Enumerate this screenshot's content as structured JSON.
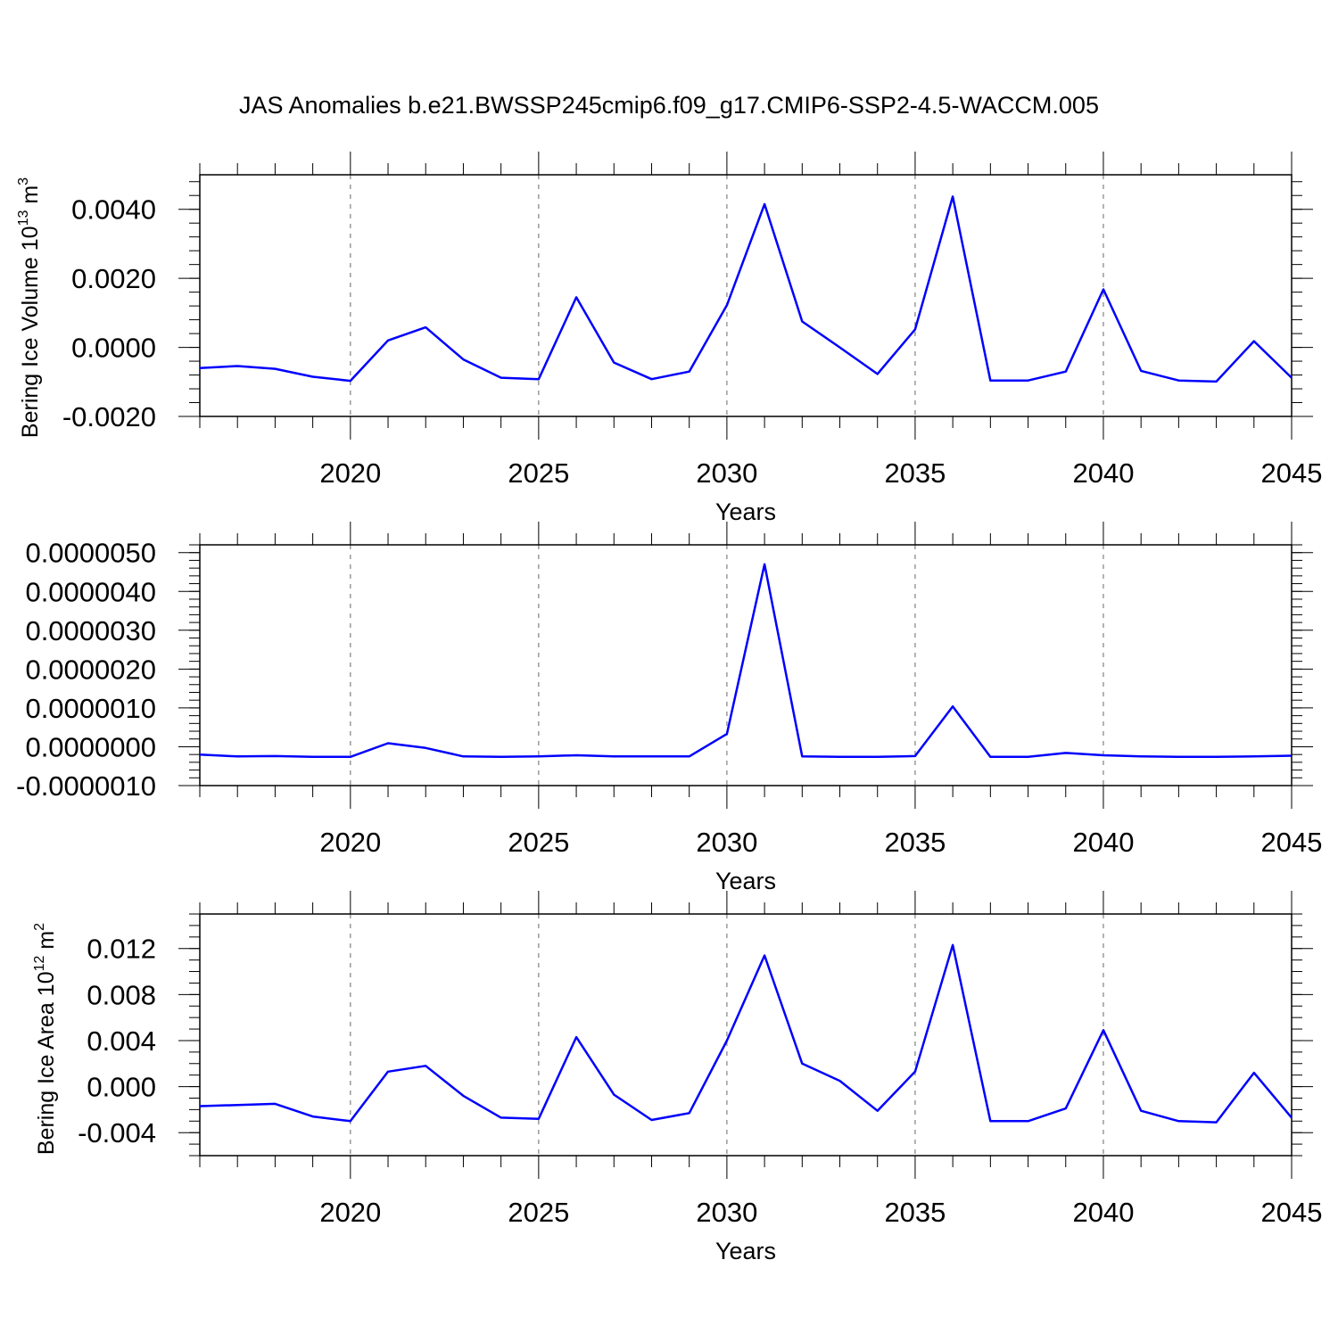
{
  "title": "JAS Anomalies b.e21.BWSSP245cmip6.f09_g17.CMIP6-SSP2-4.5-WACCM.005",
  "colors": {
    "series": "#0000ff",
    "axis": "#000000",
    "grid": "#808080"
  },
  "chart_data": [
    {
      "type": "line",
      "ylabel_main": "Bering Ice Volume 10",
      "ylabel_sup": "13",
      "ylabel_unit": " m",
      "ylabel_unit_sup": "3",
      "xlabel": "Years",
      "xlim": [
        2016,
        2045
      ],
      "ylim": [
        -0.002,
        0.005
      ],
      "x_ticks": [
        "2020",
        "2025",
        "2030",
        "2035",
        "2040",
        "2045"
      ],
      "y_ticks": [
        "0.0040",
        "0.0020",
        "0.0000",
        "-0.0020"
      ],
      "y_tick_values": [
        0.004,
        0.002,
        0.0,
        -0.002
      ],
      "y_minor_step": 0.0004,
      "grid": "vertical dashed at major x ticks",
      "x": [
        2016,
        2017,
        2018,
        2019,
        2020,
        2021,
        2022,
        2023,
        2024,
        2025,
        2026,
        2027,
        2028,
        2029,
        2030,
        2031,
        2032,
        2033,
        2034,
        2035,
        2036,
        2037,
        2038,
        2039,
        2040,
        2041,
        2042,
        2043,
        2044,
        2045
      ],
      "series": [
        {
          "values": [
            -0.0006,
            -0.00054,
            -0.00062,
            -0.00085,
            -0.00097,
            0.0002,
            0.00058,
            -0.00035,
            -0.00088,
            -0.00092,
            0.00145,
            -0.00044,
            -0.00092,
            -0.0007,
            0.00122,
            0.00415,
            0.00075,
            0.0,
            -0.00077,
            0.00052,
            0.00437,
            -0.00096,
            -0.00096,
            -0.0007,
            0.00168,
            -0.00068,
            -0.00096,
            -0.00099,
            0.00018,
            -0.00088
          ]
        }
      ]
    },
    {
      "type": "line",
      "ylabel_main": "",
      "xlabel": "Years",
      "xlim": [
        2016,
        2045
      ],
      "ylim": [
        -1e-06,
        5.2e-06
      ],
      "x_ticks": [
        "2020",
        "2025",
        "2030",
        "2035",
        "2040",
        "2045"
      ],
      "y_ticks": [
        "0.0000050",
        "0.0000040",
        "0.0000030",
        "0.0000020",
        "0.0000010",
        "0.0000000",
        "-0.0000010"
      ],
      "y_tick_values": [
        5e-06,
        4e-06,
        3e-06,
        2e-06,
        1e-06,
        0.0,
        -1e-06
      ],
      "y_minor_step": 2e-07,
      "grid": "vertical dashed at major x ticks",
      "x": [
        2016,
        2017,
        2018,
        2019,
        2020,
        2021,
        2022,
        2023,
        2024,
        2025,
        2026,
        2027,
        2028,
        2029,
        2030,
        2031,
        2032,
        2033,
        2034,
        2035,
        2036,
        2037,
        2038,
        2039,
        2040,
        2041,
        2042,
        2043,
        2044,
        2045
      ],
      "series": [
        {
          "values": [
            -2e-07,
            -2.5e-07,
            -2.4e-07,
            -2.6e-07,
            -2.6e-07,
            9e-08,
            -3e-08,
            -2.5e-07,
            -2.6e-07,
            -2.5e-07,
            -2.2e-07,
            -2.5e-07,
            -2.5e-07,
            -2.5e-07,
            3.3e-07,
            4.7e-06,
            -2.5e-07,
            -2.6e-07,
            -2.6e-07,
            -2.4e-07,
            1.04e-06,
            -2.6e-07,
            -2.6e-07,
            -1.6e-07,
            -2.2e-07,
            -2.5e-07,
            -2.6e-07,
            -2.6e-07,
            -2.5e-07,
            -2.3e-07
          ]
        }
      ]
    },
    {
      "type": "line",
      "ylabel_main": "Bering Ice Area 10",
      "ylabel_sup": "12",
      "ylabel_unit": " m",
      "ylabel_unit_sup": "2",
      "xlabel": "Years",
      "xlim": [
        2016,
        2045
      ],
      "ylim": [
        -0.006,
        0.015
      ],
      "x_ticks": [
        "2020",
        "2025",
        "2030",
        "2035",
        "2040",
        "2045"
      ],
      "y_ticks": [
        "0.012",
        "0.008",
        "0.004",
        "0.000",
        "-0.004"
      ],
      "y_tick_values": [
        0.012,
        0.008,
        0.004,
        0.0,
        -0.004
      ],
      "y_minor_step": 0.001,
      "grid": "vertical dashed at major x ticks",
      "x": [
        2016,
        2017,
        2018,
        2019,
        2020,
        2021,
        2022,
        2023,
        2024,
        2025,
        2026,
        2027,
        2028,
        2029,
        2030,
        2031,
        2032,
        2033,
        2034,
        2035,
        2036,
        2037,
        2038,
        2039,
        2040,
        2041,
        2042,
        2043,
        2044,
        2045
      ],
      "series": [
        {
          "values": [
            -0.0017,
            -0.0016,
            -0.0015,
            -0.0026,
            -0.003,
            0.0013,
            0.0018,
            -0.0008,
            -0.0027,
            -0.0028,
            0.0043,
            -0.0007,
            -0.0029,
            -0.0023,
            0.004,
            0.0114,
            0.002,
            0.0005,
            -0.0021,
            0.0013,
            0.0123,
            -0.003,
            -0.003,
            -0.0019,
            0.0049,
            -0.0021,
            -0.003,
            -0.0031,
            0.0012,
            -0.0027
          ]
        }
      ]
    }
  ]
}
